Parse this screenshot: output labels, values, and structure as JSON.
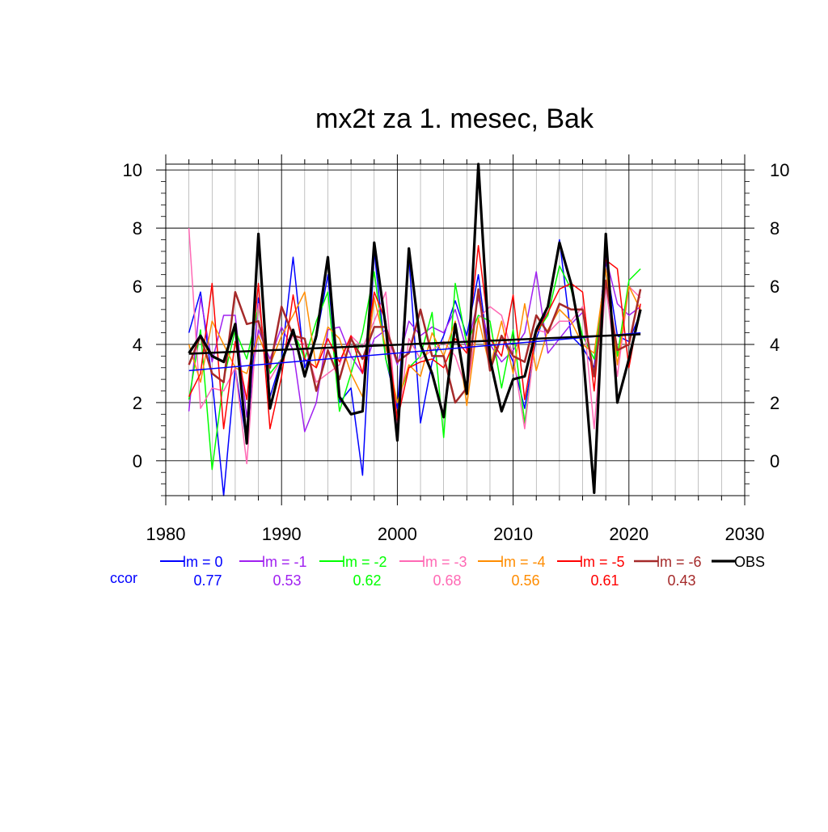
{
  "chart_data": {
    "type": "line",
    "title": "mx2t za 1. mesec, Bak",
    "xlabel": "",
    "ylabel": "",
    "xlim": [
      1980,
      2030
    ],
    "ylim": [
      -1.2,
      10.2
    ],
    "x_ticks": [
      1980,
      1990,
      2000,
      2010,
      2020,
      2030
    ],
    "y_ticks": [
      0,
      2,
      4,
      6,
      8,
      10
    ],
    "grid": true,
    "years": [
      1982,
      1983,
      1984,
      1985,
      1986,
      1987,
      1988,
      1989,
      1990,
      1991,
      1992,
      1993,
      1994,
      1995,
      1996,
      1997,
      1998,
      1999,
      2000,
      2001,
      2002,
      2003,
      2004,
      2005,
      2006,
      2007,
      2008,
      2009,
      2010,
      2011,
      2012,
      2013,
      2014,
      2015,
      2016,
      2017,
      2018,
      2019,
      2020,
      2021
    ],
    "series": [
      {
        "name": "lm = 0",
        "color": "#0000ff",
        "width": 1.5,
        "values": [
          4.4,
          5.8,
          2.8,
          -1.2,
          3.2,
          0.6,
          5.6,
          2.2,
          3.5,
          7.0,
          3.2,
          4.2,
          6.4,
          2.0,
          2.5,
          -0.5,
          7.2,
          3.5,
          1.8,
          7.0,
          1.3,
          3.4,
          4.3,
          5.5,
          4.3,
          6.4,
          3.3,
          4.3,
          3.4,
          1.8,
          4.2,
          5.3,
          7.6,
          4.3,
          3.9,
          3.2,
          6.9,
          4.3,
          4.1,
          5.1
        ]
      },
      {
        "name": "lm = -1",
        "color": "#a020f0",
        "width": 1.5,
        "values": [
          1.7,
          5.6,
          3.4,
          5.0,
          5.0,
          1.5,
          4.5,
          3.5,
          4.6,
          3.8,
          1.0,
          2.0,
          4.5,
          4.6,
          3.6,
          3.0,
          4.2,
          4.5,
          3.3,
          4.8,
          4.3,
          4.6,
          4.4,
          5.2,
          3.8,
          5.6,
          4.0,
          3.4,
          3.8,
          4.4,
          6.5,
          3.7,
          4.2,
          4.7,
          5.1,
          3.0,
          7.0,
          5.4,
          5.0,
          5.3
        ]
      },
      {
        "name": "lm = -2",
        "color": "#00ff00",
        "width": 1.5,
        "values": [
          2.1,
          4.5,
          -0.3,
          2.8,
          4.5,
          3.5,
          5.3,
          3.0,
          3.5,
          4.5,
          3.5,
          4.8,
          5.8,
          1.7,
          3.0,
          4.4,
          6.5,
          3.5,
          2.0,
          3.2,
          3.6,
          5.1,
          0.8,
          6.1,
          4.0,
          5.0,
          4.8,
          2.5,
          4.5,
          1.3,
          4.4,
          5.0,
          6.7,
          5.9,
          4.3,
          3.5,
          6.2,
          3.6,
          6.2,
          6.6
        ]
      },
      {
        "name": "lm = -3",
        "color": "#ff69b4",
        "width": 1.5,
        "values": [
          8.0,
          1.8,
          2.5,
          2.4,
          3.2,
          -0.1,
          5.4,
          2.8,
          3.5,
          4.3,
          4.0,
          2.7,
          3.0,
          3.3,
          4.3,
          3.9,
          4.8,
          5.8,
          1.2,
          4.2,
          3.5,
          3.8,
          4.1,
          3.6,
          2.4,
          4.9,
          5.3,
          5.0,
          3.6,
          1.1,
          4.5,
          4.4,
          4.8,
          4.8,
          5.3,
          1.1,
          6.0,
          2.9,
          6.0,
          5.6
        ]
      },
      {
        "name": "lm = -4",
        "color": "#ff8c00",
        "width": 1.5,
        "values": [
          4.0,
          2.7,
          4.8,
          4.0,
          3.2,
          3.0,
          4.3,
          3.3,
          4.3,
          5.0,
          5.8,
          3.2,
          4.6,
          4.2,
          3.0,
          2.2,
          5.6,
          3.9,
          2.0,
          3.3,
          2.9,
          4.4,
          3.6,
          4.8,
          1.9,
          4.9,
          3.2,
          4.8,
          3.0,
          5.4,
          3.1,
          4.5,
          5.2,
          4.8,
          4.0,
          3.7,
          6.6,
          3.3,
          6.0,
          5.2
        ]
      },
      {
        "name": "lm = -5",
        "color": "#ff0000",
        "width": 1.5,
        "values": [
          2.2,
          3.0,
          6.1,
          1.1,
          4.1,
          2.1,
          6.1,
          1.1,
          2.9,
          5.7,
          3.5,
          3.2,
          4.2,
          3.4,
          4.3,
          3.0,
          5.8,
          4.8,
          1.4,
          3.2,
          3.4,
          3.5,
          3.2,
          4.2,
          3.7,
          7.4,
          4.2,
          3.6,
          5.7,
          2.1,
          4.4,
          5.1,
          5.9,
          6.1,
          5.8,
          2.4,
          6.9,
          6.6,
          3.2,
          5.4
        ]
      },
      {
        "name": "lm = -6",
        "color": "#a52a2a",
        "width": 2.5,
        "values": [
          3.3,
          4.3,
          3.0,
          2.7,
          5.8,
          4.7,
          4.8,
          3.2,
          5.3,
          4.3,
          4.2,
          2.4,
          3.8,
          2.8,
          4.2,
          3.5,
          4.6,
          4.6,
          3.4,
          3.7,
          5.2,
          3.6,
          3.6,
          2.0,
          2.5,
          5.9,
          3.1,
          4.3,
          3.6,
          3.4,
          5.0,
          4.4,
          5.4,
          5.2,
          5.2,
          2.9,
          6.2,
          3.8,
          4.0,
          5.9
        ]
      },
      {
        "name": "OBS",
        "color": "#000000",
        "width": 3.2,
        "values": [
          3.7,
          4.3,
          3.6,
          3.4,
          4.7,
          0.6,
          7.8,
          1.8,
          3.4,
          4.5,
          2.9,
          4.3,
          7.0,
          2.2,
          1.6,
          1.7,
          7.5,
          4.6,
          0.7,
          7.3,
          4.0,
          3.0,
          1.5,
          4.7,
          2.3,
          10.2,
          3.5,
          1.7,
          2.8,
          2.9,
          4.5,
          5.3,
          7.5,
          6.1,
          3.9,
          -1.1,
          7.8,
          2.0,
          3.5,
          5.2
        ]
      }
    ],
    "trend_lines": [
      {
        "name": "lm = 0 trend",
        "color": "#0000ff",
        "width": 1.5,
        "x": [
          1982,
          2021
        ],
        "y": [
          3.1,
          4.4
        ]
      },
      {
        "name": "OBS trend",
        "color": "#000000",
        "width": 2.5,
        "x": [
          1982,
          2021
        ],
        "y": [
          3.68,
          4.35
        ]
      }
    ],
    "legend_placement": "bottom",
    "ccor_label": "ccor",
    "ccor_color": "#0000ff",
    "ccor_values": [
      "0.77",
      "0.53",
      "0.62",
      "0.68",
      "0.56",
      "0.61",
      "0.43"
    ]
  }
}
